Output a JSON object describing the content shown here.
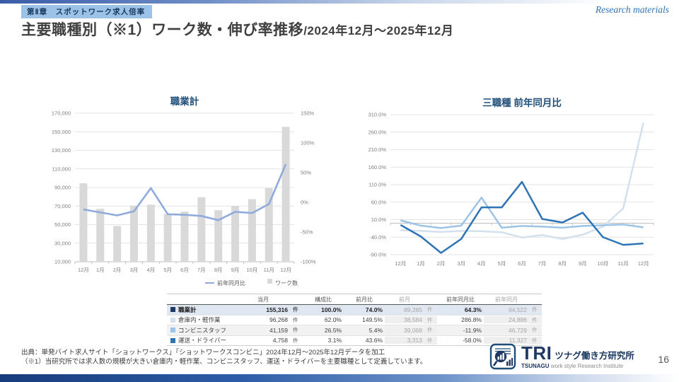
{
  "page": {
    "chapter_badge": "第Ⅱ章　スポットワーク求人倍率",
    "watermark": "Research materials",
    "title_main": "主要職種別（※1）ワーク数・伸び率推移",
    "title_period": "/2024年12月～2025年12月",
    "page_number": "16"
  },
  "colors": {
    "total_navy": "#1f3864",
    "warehouse_pale": "#d3e0ee",
    "conbini_medium": "#9dc3e6",
    "driver_dark": "#2e74b5",
    "bar_grey": "#d9d9d9",
    "line_blue": "#8faadc",
    "chart_title": "#1f4e79"
  },
  "chart_data": [
    {
      "type": "combo",
      "title": "職業計",
      "categories": [
        "12月",
        "1月",
        "2月",
        "3月",
        "4月",
        "5月",
        "6月",
        "7月",
        "8月",
        "9月",
        "10月",
        "11月",
        "12月"
      ],
      "series": [
        {
          "name": "ワーク数",
          "type": "bar",
          "axis": "left",
          "color": "#d9d9d9",
          "values": [
            94522,
            67000,
            48500,
            70500,
            71500,
            61500,
            64000,
            79500,
            65500,
            69800,
            77400,
            89285,
            155316
          ]
        },
        {
          "name": "前年同月比",
          "type": "line",
          "axis": "right",
          "color": "#8faadc",
          "values": [
            -12,
            -17,
            -22,
            -15,
            24,
            -20,
            -21,
            -23,
            -30,
            -16,
            -18,
            -3,
            64.3
          ]
        }
      ],
      "left_axis": {
        "min": 10000,
        "max": 170000,
        "step": 20000,
        "labels": [
          "170,000",
          "150,000",
          "130,000",
          "110,000",
          "90,000",
          "70,000",
          "50,000",
          "30,000",
          "10,000"
        ]
      },
      "right_axis": {
        "min": -100,
        "max": 150,
        "step": 50,
        "labels": [
          "150%",
          "100%",
          "50%",
          "0%",
          "-50%",
          "-100%"
        ]
      },
      "legend": [
        "前年同月比",
        "ワーク数"
      ],
      "xlabel": "",
      "ylabel": ""
    },
    {
      "type": "line",
      "title": "三職種 前年同月比",
      "categories": [
        "12月",
        "1月",
        "2月",
        "3月",
        "4月",
        "5月",
        "6月",
        "7月",
        "8月",
        "9月",
        "10月",
        "11月",
        "12月"
      ],
      "series": [
        {
          "name": "倉庫内・軽作業",
          "color": "#d3e0ee",
          "values": [
            -20,
            -22,
            -25,
            -22,
            -23,
            -26,
            -41,
            -34,
            -45,
            -33,
            -10,
            42,
            286.8
          ]
        },
        {
          "name": "コンビニスタッフ",
          "color": "#9dc3e6",
          "values": [
            8,
            -7,
            -14,
            -7,
            73,
            -13,
            -8,
            -10,
            -13,
            -8,
            -6,
            -4,
            -11.9
          ]
        },
        {
          "name": "運送・ドライバー",
          "color": "#2e74b5",
          "values": [
            -5,
            -38,
            -85,
            -45,
            45,
            45,
            118,
            12,
            2,
            30,
            -40,
            -62,
            -58
          ]
        }
      ],
      "y_axis": {
        "min": -90,
        "max": 310,
        "step": 50,
        "labels": [
          "310.0%",
          "260.0%",
          "210.0%",
          "160.0%",
          "110.0%",
          "60.0%",
          "10.0%",
          "-40.0%",
          "-90.0%"
        ]
      },
      "legend_position": "none",
      "xlabel": "",
      "ylabel": ""
    }
  ],
  "table": {
    "unit": "件",
    "columns": [
      {
        "label": "",
        "key": "label"
      },
      {
        "label": "当月",
        "key": "current",
        "num": true
      },
      {
        "label": "",
        "key": "u",
        "unit": true
      },
      {
        "label": "構成比",
        "key": "share",
        "num": true
      },
      {
        "label": "前月比",
        "key": "mom",
        "num": true
      },
      {
        "label": "前月",
        "key": "prev",
        "num": true,
        "grey": true
      },
      {
        "label": "",
        "key": "u",
        "unit": true,
        "grey": true
      },
      {
        "label": "前年同月比",
        "key": "yoy",
        "num": true
      },
      {
        "label": "前年同月",
        "key": "prev_year",
        "num": true,
        "grey": true
      },
      {
        "label": "",
        "key": "u",
        "unit": true,
        "grey": true
      }
    ],
    "rows": [
      {
        "label": "職業計",
        "color": "#1f3864",
        "highlight": true,
        "current": "155,316",
        "share": "100.0%",
        "mom": "74.0%",
        "prev": "89,285",
        "yoy": "64.3%",
        "prev_year": "94,522"
      },
      {
        "label": "倉庫内・軽作業",
        "color": "#d3e0ee",
        "current": "96,268",
        "share": "62.0%",
        "mom": "149.5%",
        "prev": "38,584",
        "yoy": "286.8%",
        "prev_year": "24,886"
      },
      {
        "label": "コンビニスタッフ",
        "color": "#9dc3e6",
        "alt": true,
        "current": "41,159",
        "share": "26.5%",
        "mom": "5.4%",
        "prev": "39,068",
        "yoy": "-11.9%",
        "prev_year": "46,729"
      },
      {
        "label": "運送・ドライバー",
        "color": "#2e74b5",
        "current": "4,758",
        "share": "3.1%",
        "mom": "43.6%",
        "prev": "3,313",
        "yoy": "-58.0%",
        "prev_year": "11,327"
      }
    ]
  },
  "footer": {
    "source_line1": "出典：単発バイト求人サイト「ショットワークス」「ショットワークスコンビニ」2024年12月～2025年12月データを加工",
    "source_line2": "（※1）当研究所では求人数の規模が大きい倉庫内・軽作業、コンビニスタッフ、運送・ドライバーを主要職種として定義しています。",
    "logo": {
      "tri": "TRI",
      "jp": "ツナグ働き方研究所",
      "en_bold": "TSUNAGU",
      "en_rest": " work style Research Institute"
    }
  }
}
